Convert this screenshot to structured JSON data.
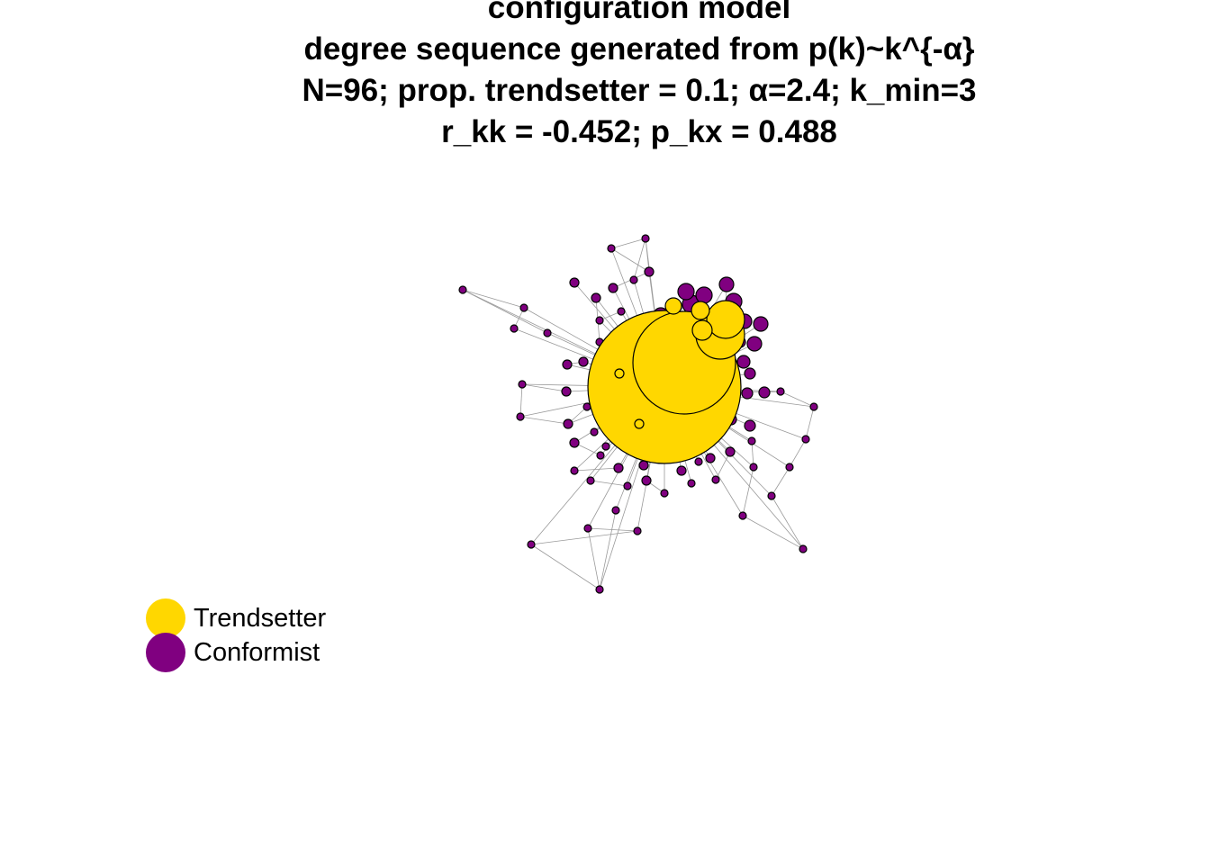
{
  "title": {
    "line1": "configuration model",
    "line2": "degree sequence generated from p(k)~k^{-α}",
    "line3": "N=96; prop. trendsetter = 0.1; α=2.4; k_min=3",
    "line4": "r_kk = -0.452; p_kx = 0.488"
  },
  "colors": {
    "trendsetter": "#FFD700",
    "conformist": "#800080",
    "edge": "#9a9a9a",
    "node_border": "#000000"
  },
  "legend": [
    {
      "label": "Trendsetter",
      "color_key": "trendsetter"
    },
    {
      "label": "Conformist",
      "color_key": "conformist"
    }
  ],
  "network": {
    "node_count": 96,
    "proportion_trendsetter": 0.1,
    "alpha": 2.4,
    "k_min": 3,
    "r_kk": -0.452,
    "p_kx": 0.488
  }
}
